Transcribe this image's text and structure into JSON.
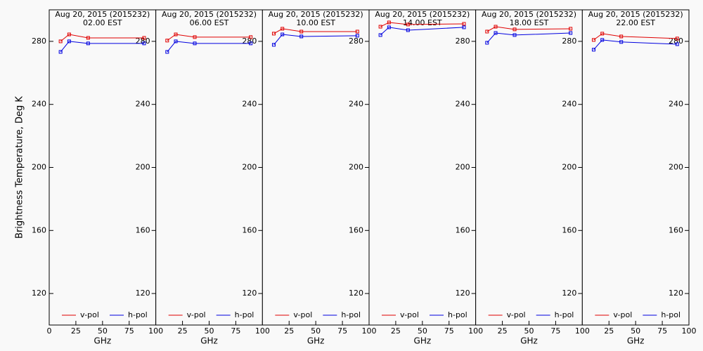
{
  "chart_data": [
    {
      "type": "line",
      "title": "Aug 20, 2015 (2015232)",
      "subtitle": "02.00 EST",
      "ylabel": "Brightness Temperature, Deg K",
      "xlabel": "GHz",
      "x": [
        10.65,
        18.7,
        36.5,
        89
      ],
      "xlim": [
        0,
        100
      ],
      "xticks": [
        0,
        25,
        50,
        75,
        100
      ],
      "ylim": [
        100,
        300
      ],
      "yticks": [
        120,
        160,
        200,
        240,
        280
      ],
      "series": [
        {
          "name": "v-pol",
          "color": "#e00000",
          "values": [
            280,
            284.4,
            282.2,
            282.2
          ]
        },
        {
          "name": "h-pol",
          "color": "#0000e0",
          "values": [
            273.3,
            280,
            278.7,
            278.7
          ]
        }
      ]
    },
    {
      "type": "line",
      "title": "Aug 20, 2015 (2015232)",
      "subtitle": "06.00 EST",
      "xlabel": "GHz",
      "x": [
        10.65,
        18.7,
        36.5,
        89
      ],
      "xlim": [
        0,
        100
      ],
      "xticks": [
        25,
        50,
        75,
        100
      ],
      "ylim": [
        100,
        300
      ],
      "yticks": [
        120,
        160,
        200,
        240,
        280
      ],
      "series": [
        {
          "name": "v-pol",
          "color": "#e00000",
          "values": [
            280.5,
            284.4,
            282.7,
            282.7
          ]
        },
        {
          "name": "h-pol",
          "color": "#0000e0",
          "values": [
            273.3,
            280,
            278.7,
            278.7
          ]
        }
      ]
    },
    {
      "type": "line",
      "title": "Aug 20, 2015 (2015232)",
      "subtitle": "10.00 EST",
      "xlabel": "GHz",
      "x": [
        10.65,
        18.7,
        36.5,
        89
      ],
      "xlim": [
        0,
        100
      ],
      "xticks": [
        25,
        50,
        75,
        100
      ],
      "ylim": [
        100,
        300
      ],
      "yticks": [
        120,
        160,
        200,
        240,
        280
      ],
      "series": [
        {
          "name": "v-pol",
          "color": "#e00000",
          "values": [
            284.9,
            288,
            286.2,
            286.2
          ]
        },
        {
          "name": "h-pol",
          "color": "#0000e0",
          "values": [
            277.8,
            284.4,
            283.1,
            283.6
          ]
        }
      ]
    },
    {
      "type": "line",
      "title": "Aug 20, 2015 (2015232)",
      "subtitle": "14.00 EST",
      "xlabel": "GHz",
      "x": [
        10.65,
        18.7,
        36.5,
        89
      ],
      "xlim": [
        0,
        100
      ],
      "xticks": [
        25,
        50,
        75,
        100
      ],
      "ylim": [
        100,
        300
      ],
      "yticks": [
        120,
        160,
        200,
        240,
        280
      ],
      "series": [
        {
          "name": "v-pol",
          "color": "#e00000",
          "values": [
            289.3,
            292,
            290.7,
            291.1
          ]
        },
        {
          "name": "h-pol",
          "color": "#0000e0",
          "values": [
            284,
            288.9,
            287.1,
            288.9
          ]
        }
      ]
    },
    {
      "type": "line",
      "title": "Aug 20, 2015 (2015232)",
      "subtitle": "18.00 EST",
      "xlabel": "GHz",
      "x": [
        10.65,
        18.7,
        36.5,
        89
      ],
      "xlim": [
        0,
        100
      ],
      "xticks": [
        25,
        50,
        75,
        100
      ],
      "ylim": [
        100,
        300
      ],
      "yticks": [
        120,
        160,
        200,
        240,
        280
      ],
      "series": [
        {
          "name": "v-pol",
          "color": "#e00000",
          "values": [
            286.2,
            289.3,
            287.6,
            288
          ]
        },
        {
          "name": "h-pol",
          "color": "#0000e0",
          "values": [
            279.1,
            285.3,
            284,
            285.3
          ]
        }
      ]
    },
    {
      "type": "line",
      "title": "Aug 20, 2015 (2015232)",
      "subtitle": "22.00 EST",
      "xlabel": "GHz",
      "x": [
        10.65,
        18.7,
        36.5,
        89
      ],
      "xlim": [
        0,
        100
      ],
      "xticks": [
        25,
        50,
        75,
        100
      ],
      "ylim": [
        100,
        300
      ],
      "yticks": [
        120,
        160,
        200,
        240,
        280
      ],
      "series": [
        {
          "name": "v-pol",
          "color": "#e00000",
          "values": [
            280.9,
            284.9,
            283.1,
            281.8
          ]
        },
        {
          "name": "h-pol",
          "color": "#0000e0",
          "values": [
            274.7,
            280.9,
            279.6,
            278.2
          ]
        }
      ]
    }
  ]
}
